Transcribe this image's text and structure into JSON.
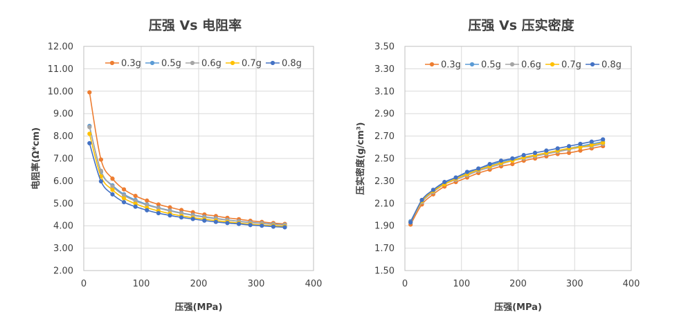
{
  "chart_data": [
    {
      "type": "line",
      "title": "压强 Vs 电阻率",
      "xlabel": "压强(MPa)",
      "ylabel": "电阻率(Ω*cm)",
      "xlim": [
        0,
        400
      ],
      "ylim": [
        2,
        12
      ],
      "xticks": [
        0,
        100,
        200,
        300,
        400
      ],
      "xtick_labels": [
        "0",
        "100",
        "200",
        "300",
        "400"
      ],
      "yticks": [
        2,
        3,
        4,
        5,
        6,
        7,
        8,
        9,
        10,
        11,
        12
      ],
      "ytick_labels": [
        "2.00",
        "3.00",
        "4.00",
        "5.00",
        "6.00",
        "7.00",
        "8.00",
        "9.00",
        "10.00",
        "11.00",
        "12.00"
      ],
      "grid": true,
      "legend_position": "top",
      "x": [
        10,
        30,
        50,
        70,
        90,
        110,
        130,
        150,
        170,
        190,
        210,
        230,
        250,
        270,
        290,
        310,
        330,
        350
      ],
      "series": [
        {
          "name": "0.3g",
          "color": "#ED7D31",
          "values": [
            9.95,
            6.95,
            6.1,
            5.62,
            5.33,
            5.12,
            4.95,
            4.82,
            4.7,
            4.6,
            4.5,
            4.43,
            4.35,
            4.29,
            4.22,
            4.17,
            4.12,
            4.08
          ]
        },
        {
          "name": "0.5g",
          "color": "#5B9BD5",
          "values": [
            8.45,
            6.4,
            5.8,
            5.4,
            5.15,
            4.95,
            4.8,
            4.68,
            4.57,
            4.48,
            4.4,
            4.33,
            4.26,
            4.2,
            4.15,
            4.11,
            4.07,
            4.04
          ]
        },
        {
          "name": "0.6g",
          "color": "#A5A5A5",
          "values": [
            8.4,
            6.45,
            5.75,
            5.35,
            5.1,
            4.92,
            4.78,
            4.66,
            4.55,
            4.46,
            4.38,
            4.31,
            4.25,
            4.19,
            4.14,
            4.1,
            4.06,
            4.03
          ]
        },
        {
          "name": "0.7g",
          "color": "#FFC000",
          "values": [
            8.1,
            6.2,
            5.6,
            5.22,
            4.98,
            4.8,
            4.66,
            4.54,
            4.44,
            4.36,
            4.29,
            4.23,
            4.17,
            4.12,
            4.07,
            4.03,
            4.0,
            3.97
          ]
        },
        {
          "name": "0.8g",
          "color": "#4472C4",
          "values": [
            7.68,
            5.98,
            5.4,
            5.05,
            4.85,
            4.69,
            4.56,
            4.46,
            4.37,
            4.3,
            4.23,
            4.17,
            4.12,
            4.08,
            4.03,
            4.0,
            3.96,
            3.93
          ]
        }
      ]
    },
    {
      "type": "line",
      "title": "压强 Vs 压实密度",
      "xlabel": "压强(MPa)",
      "ylabel": "压实密度(g/cm³)",
      "xlim": [
        0,
        400
      ],
      "ylim": [
        1.5,
        3.5
      ],
      "xticks": [
        0,
        100,
        200,
        300,
        400
      ],
      "xtick_labels": [
        "0",
        "100",
        "200",
        "300",
        "400"
      ],
      "yticks": [
        1.5,
        1.7,
        1.9,
        2.1,
        2.3,
        2.5,
        2.7,
        2.9,
        3.1,
        3.3,
        3.5
      ],
      "ytick_labels": [
        "1.50",
        "1.70",
        "1.90",
        "2.10",
        "2.30",
        "2.50",
        "2.70",
        "2.90",
        "3.10",
        "3.30",
        "3.50"
      ],
      "grid": true,
      "legend_position": "top",
      "x": [
        10,
        30,
        50,
        70,
        90,
        110,
        130,
        150,
        170,
        190,
        210,
        230,
        250,
        270,
        290,
        310,
        330,
        350
      ],
      "series": [
        {
          "name": "0.3g",
          "color": "#ED7D31",
          "values": [
            1.91,
            2.09,
            2.18,
            2.25,
            2.29,
            2.33,
            2.37,
            2.4,
            2.43,
            2.45,
            2.48,
            2.5,
            2.52,
            2.54,
            2.55,
            2.57,
            2.59,
            2.61
          ]
        },
        {
          "name": "0.5g",
          "color": "#5B9BD5",
          "values": [
            1.94,
            2.12,
            2.21,
            2.28,
            2.33,
            2.37,
            2.41,
            2.44,
            2.47,
            2.49,
            2.51,
            2.53,
            2.55,
            2.57,
            2.59,
            2.61,
            2.63,
            2.65
          ]
        },
        {
          "name": "0.6g",
          "color": "#A5A5A5",
          "values": [
            1.93,
            2.11,
            2.2,
            2.27,
            2.31,
            2.35,
            2.39,
            2.42,
            2.45,
            2.48,
            2.5,
            2.52,
            2.54,
            2.56,
            2.58,
            2.6,
            2.61,
            2.63
          ]
        },
        {
          "name": "0.7g",
          "color": "#FFC000",
          "values": [
            1.93,
            2.12,
            2.21,
            2.27,
            2.32,
            2.36,
            2.4,
            2.43,
            2.46,
            2.48,
            2.51,
            2.53,
            2.55,
            2.57,
            2.59,
            2.6,
            2.62,
            2.64
          ]
        },
        {
          "name": "0.8g",
          "color": "#4472C4",
          "values": [
            1.93,
            2.13,
            2.22,
            2.29,
            2.33,
            2.38,
            2.41,
            2.45,
            2.48,
            2.5,
            2.53,
            2.55,
            2.57,
            2.59,
            2.61,
            2.63,
            2.65,
            2.67
          ]
        }
      ]
    }
  ]
}
